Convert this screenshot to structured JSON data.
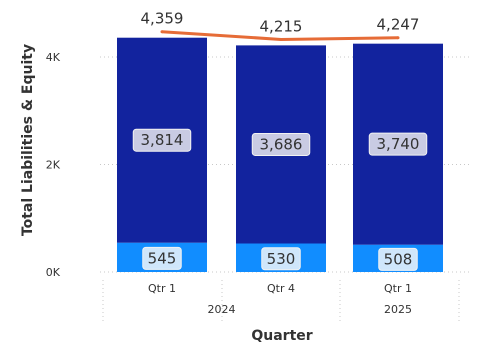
{
  "chart_data": {
    "type": "bar",
    "stacked": true,
    "categories": [
      "Qtr 1",
      "Qtr 4",
      "Qtr 1"
    ],
    "year_groups": [
      {
        "label": "2024",
        "categories": [
          0,
          1
        ]
      },
      {
        "label": "2025",
        "categories": [
          2
        ]
      }
    ],
    "series": [
      {
        "values": [
          545,
          530,
          508
        ],
        "color": "#118dff"
      },
      {
        "values": [
          3814,
          3686,
          3740
        ],
        "color": "#12239e"
      }
    ],
    "line_series": {
      "values": [
        4359,
        4215,
        4247
      ],
      "color": "#e66c37"
    },
    "total_labels": [
      "4,359",
      "4,215",
      "4,247"
    ],
    "segment_labels": [
      [
        "545",
        "530",
        "508"
      ],
      [
        "3,814",
        "3,686",
        "3,740"
      ]
    ],
    "xlabel": "Quarter",
    "ylabel": "Total Liabilities & Equity",
    "ylim": [
      0,
      4600
    ],
    "yticks": [
      {
        "value": 0,
        "label": "0K"
      },
      {
        "value": 2000,
        "label": "2K"
      },
      {
        "value": 4000,
        "label": "4K"
      }
    ],
    "grid": true,
    "legend": "none"
  }
}
